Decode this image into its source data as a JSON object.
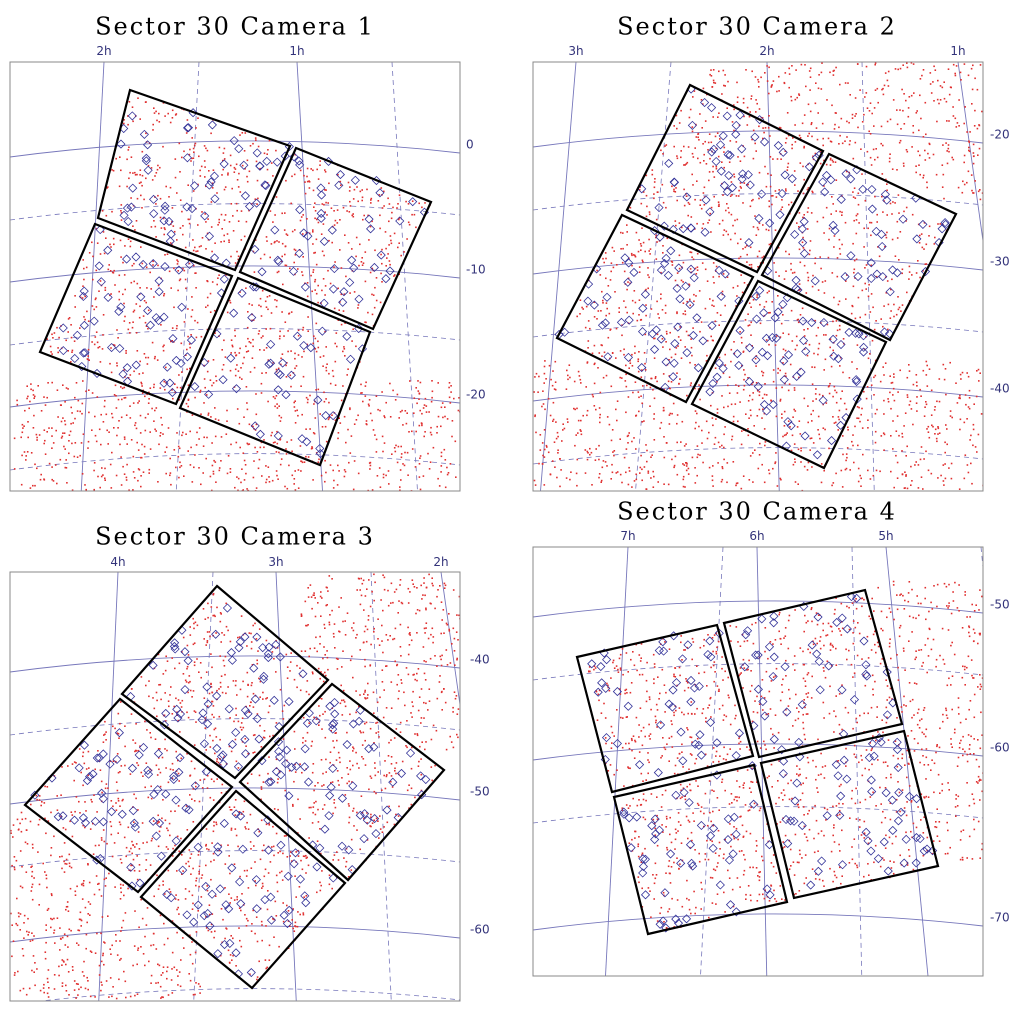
{
  "panels": [
    {
      "title": "Sector 30 Camera 1",
      "ra_labels": [
        "2h",
        "1h"
      ],
      "dec_labels": [
        "0",
        "-10",
        "-20"
      ]
    },
    {
      "title": "Sector 30 Camera 2",
      "ra_labels": [
        "3h",
        "2h",
        "1h"
      ],
      "dec_labels": [
        "-20",
        "-30",
        "-40"
      ]
    },
    {
      "title": "Sector 30 Camera 3",
      "ra_labels": [
        "4h",
        "3h",
        "2h"
      ],
      "dec_labels": [
        "-40",
        "-50",
        "-60"
      ]
    },
    {
      "title": "Sector 30 Camera 4",
      "ra_labels": [
        "7h",
        "6h",
        "5h"
      ],
      "dec_labels": [
        "-50",
        "-60",
        "-70"
      ]
    }
  ]
}
